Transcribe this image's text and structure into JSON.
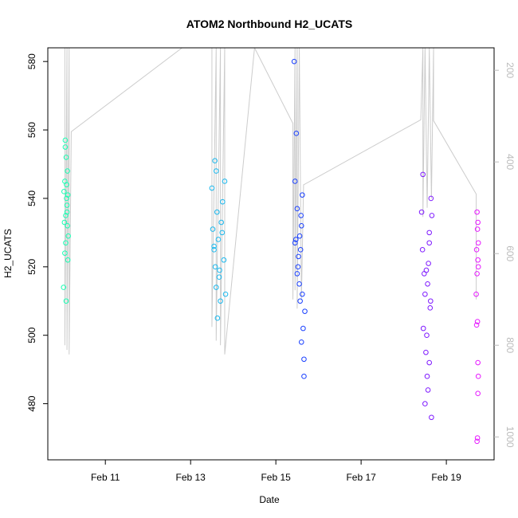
{
  "chart_data": {
    "type": "scatter",
    "title": "ATOM2 Northbound H2_UCATS",
    "x_label": "Date",
    "y_label": "H2_UCATS",
    "xlim": [
      9.65,
      20.12
    ],
    "ylim": [
      463.6,
      584
    ],
    "y2lim": [
      1050,
      151
    ],
    "xticks": [
      {
        "value": 11,
        "label": "Feb 11"
      },
      {
        "value": 13,
        "label": "Feb 13"
      },
      {
        "value": 15,
        "label": "Feb 15"
      },
      {
        "value": 17,
        "label": "Feb 17"
      },
      {
        "value": 19,
        "label": "Feb 19"
      }
    ],
    "yticks": [
      480,
      500,
      520,
      540,
      560,
      580
    ],
    "y2ticks": [
      200,
      400,
      600,
      800,
      1000
    ],
    "series": [
      {
        "type": "line",
        "axis": "y2",
        "color": "#cccccc",
        "x": [
          10.05,
          10.05,
          10.1,
          10.1,
          10.15,
          10.15,
          10.2,
          12.8,
          13.5,
          13.5,
          13.6,
          13.6,
          13.7,
          13.7,
          13.8,
          13.8,
          14.5,
          15.4,
          15.4,
          15.45,
          15.45,
          15.5,
          15.5,
          15.55,
          15.6,
          15.65,
          18.4,
          18.45,
          18.45,
          18.5,
          18.55,
          18.6,
          18.65,
          18.7,
          18.7,
          19.7,
          19.7
        ],
        "values": [
          151,
          800,
          151,
          810,
          151,
          820,
          334,
          151,
          151,
          760,
          151,
          790,
          151,
          800,
          151,
          820,
          151,
          316,
          700,
          151,
          680,
          151,
          720,
          151,
          700,
          450,
          308,
          151,
          520,
          151,
          500,
          151,
          480,
          151,
          310,
          470,
          700
        ]
      },
      {
        "color": "#1AFFB3",
        "x": [
          10.02,
          10.04,
          10.05,
          10.06,
          10.07,
          10.08,
          10.09,
          10.1,
          10.11,
          10.12,
          10.13,
          10.05,
          10.08,
          10.1,
          10.03,
          10.12,
          10.07,
          10.09,
          10.11,
          10.06
        ],
        "values": [
          514,
          533,
          545,
          557,
          527,
          552,
          540,
          536,
          548,
          541,
          529,
          524,
          510,
          538,
          542,
          522,
          535,
          544,
          532,
          555
        ]
      },
      {
        "color": "#1AB8EE",
        "x": [
          13.5,
          13.52,
          13.55,
          13.57,
          13.58,
          13.6,
          13.62,
          13.63,
          13.65,
          13.6,
          13.67,
          13.7,
          13.72,
          13.75,
          13.78,
          13.8,
          13.82,
          13.55,
          13.68,
          13.74
        ],
        "values": [
          543,
          531,
          525,
          551,
          520,
          514,
          536,
          505,
          528,
          548,
          517,
          510,
          533,
          539,
          522,
          545,
          512,
          526,
          519,
          530
        ]
      },
      {
        "color": "#1A40FF",
        "x": [
          15.43,
          15.48,
          15.45,
          15.5,
          15.47,
          15.52,
          15.55,
          15.58,
          15.6,
          15.62,
          15.57,
          15.64,
          15.6,
          15.66,
          15.66,
          15.5,
          15.53,
          15.56,
          15.59,
          15.62,
          15.68,
          15.45
        ],
        "values": [
          580,
          559,
          545,
          537,
          528,
          520,
          515,
          525,
          532,
          541,
          510,
          502,
          498,
          493,
          488,
          518,
          523,
          529,
          535,
          512,
          507,
          527
        ]
      },
      {
        "color": "#7F1AFF",
        "x": [
          18.42,
          18.45,
          18.44,
          18.48,
          18.5,
          18.46,
          18.52,
          18.55,
          18.5,
          18.65,
          18.6,
          18.58,
          18.56,
          18.62,
          18.54,
          18.6,
          18.57,
          18.64,
          18.66,
          18.6,
          18.53,
          18.63
        ],
        "values": [
          536,
          547,
          525,
          518,
          512,
          502,
          495,
          488,
          480,
          476,
          530,
          521,
          515,
          508,
          500,
          492,
          484,
          540,
          535,
          527,
          519,
          510
        ]
      },
      {
        "color": "#E61AFF",
        "x": [
          19.72,
          19.73,
          19.75,
          19.74,
          19.72,
          19.7,
          19.73,
          19.74,
          19.75,
          19.74,
          19.73,
          19.72,
          19.71,
          19.74,
          19.71,
          19.75
        ],
        "values": [
          536,
          531,
          527,
          522,
          518,
          512,
          504,
          492,
          488,
          483,
          470,
          469,
          525,
          533,
          503,
          520
        ]
      }
    ]
  }
}
